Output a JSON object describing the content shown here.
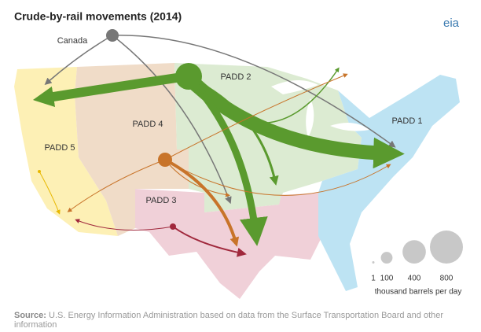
{
  "header": {
    "title": "Crude-by-rail movements (2014)",
    "logo": "eia"
  },
  "map": {
    "labels": {
      "canada": "Canada",
      "padd1": "PADD 1",
      "padd2": "PADD 2",
      "padd3": "PADD 3",
      "padd4": "PADD 4",
      "padd5": "PADD 5"
    }
  },
  "legend": {
    "sizes": [
      1,
      100,
      400,
      800
    ],
    "unit": "thousand barrels per day"
  },
  "footer": {
    "source_label": "Source:",
    "source": "U.S. Energy Information Administration based on data from the Surface Transportation Board and other information"
  }
}
